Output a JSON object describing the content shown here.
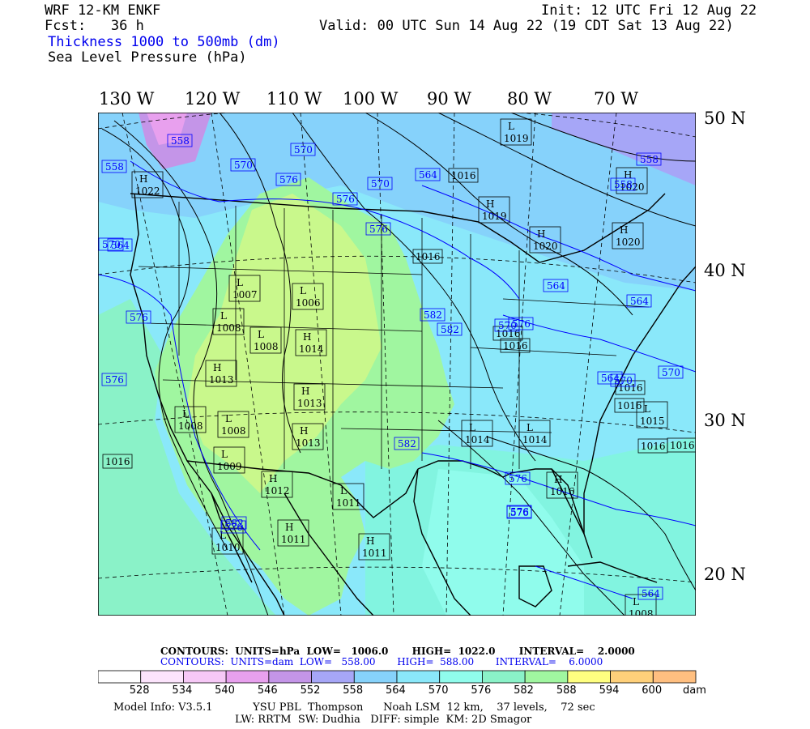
{
  "header": {
    "model": "WRF 12-KM ENKF",
    "fcst": "Fcst:   36 h",
    "field1": "Thickness 1000 to 500mb (dm)",
    "field2": "Sea Level Pressure (hPa)",
    "init": "Init: 12 UTC Fri 12 Aug 22",
    "valid": "Valid: 00 UTC Sun 14 Aug 22 (19 CDT Sat 13 Aug 22)"
  },
  "axes": {
    "lon_labels": [
      "130 W",
      "120 W",
      "110 W",
      "100 W",
      "90 W",
      "80 W",
      "70 W"
    ],
    "lat_labels": [
      "50 N",
      "40 N",
      "30 N",
      "20 N"
    ]
  },
  "colors": {
    "bar": [
      "#ffffff",
      "#fce4fc",
      "#f6c8f6",
      "#e8a0ee",
      "#c495e8",
      "#a6a6f7",
      "#86d2fb",
      "#8ae8fa",
      "#90fcec",
      "#8af2c8",
      "#a0f6a0",
      "#ffff80",
      "#ffd07a",
      "#ffbf80"
    ],
    "ocean": "#82f4e0",
    "land_mid": "#c9f88c",
    "canada": "#8fdcfb",
    "contour_blue": "#0000ff"
  },
  "colorbar": {
    "ticks": [
      "528",
      "534",
      "540",
      "546",
      "552",
      "558",
      "564",
      "570",
      "576",
      "582",
      "588",
      "594",
      "600"
    ],
    "unit": "dam"
  },
  "pressure_centers": [
    {
      "type": "L",
      "value": "1019"
    },
    {
      "type": "H",
      "value": "1022"
    },
    {
      "type": "H",
      "value": "1019"
    },
    {
      "type": "H",
      "value": "1020"
    },
    {
      "type": "H",
      "value": "1020"
    },
    {
      "type": "H",
      "value": "1020"
    },
    {
      "type": "L",
      "value": "1007"
    },
    {
      "type": "L",
      "value": "1006"
    },
    {
      "type": "L",
      "value": "1008"
    },
    {
      "type": "L",
      "value": "1008"
    },
    {
      "type": "H",
      "value": "1014"
    },
    {
      "type": "H",
      "value": "1013"
    },
    {
      "type": "H",
      "value": "1013"
    },
    {
      "type": "L",
      "value": "1008"
    },
    {
      "type": "L",
      "value": "1008"
    },
    {
      "type": "L",
      "value": "1009"
    },
    {
      "type": "H",
      "value": "1013"
    },
    {
      "type": "H",
      "value": "1012"
    },
    {
      "type": "L",
      "value": "1011"
    },
    {
      "type": "H",
      "value": "1011"
    },
    {
      "type": "H",
      "value": "1011"
    },
    {
      "type": "L",
      "value": "1010"
    },
    {
      "type": "L",
      "value": "1014"
    },
    {
      "type": "L",
      "value": "1014"
    },
    {
      "type": "H",
      "value": "1016"
    },
    {
      "type": "L",
      "value": "1015"
    },
    {
      "type": "L",
      "value": "1008"
    }
  ],
  "isobar_labels": [
    "1016",
    "1016",
    "1016",
    "1016",
    "1016",
    "1016",
    "1016",
    "1016",
    "1016"
  ],
  "thickness_labels": [
    "558",
    "558",
    "558",
    "558",
    "564",
    "564",
    "564",
    "564",
    "570",
    "570",
    "570",
    "570",
    "570",
    "570",
    "570",
    "576",
    "576",
    "576",
    "576",
    "576",
    "576",
    "576",
    "576",
    "576",
    "576",
    "582",
    "582",
    "582",
    "582",
    "564",
    "564"
  ],
  "contour_info": {
    "line1": "CONTOURS:  UNITS=hPa  LOW=   1006.0       HIGH=  1022.0       INTERVAL=    2.0000",
    "line2": "CONTOURS:  UNITS=dam  LOW=   558.00       HIGH=  588.00       INTERVAL=    6.0000"
  },
  "model_info": {
    "line1": "Model Info: V3.5.1            YSU PBL  Thompson      Noah LSM  12 km,    37 levels,    72 sec",
    "line2": "LW: RRTM  SW: Dudhia   DIFF: simple  KM: 2D Smagor"
  }
}
